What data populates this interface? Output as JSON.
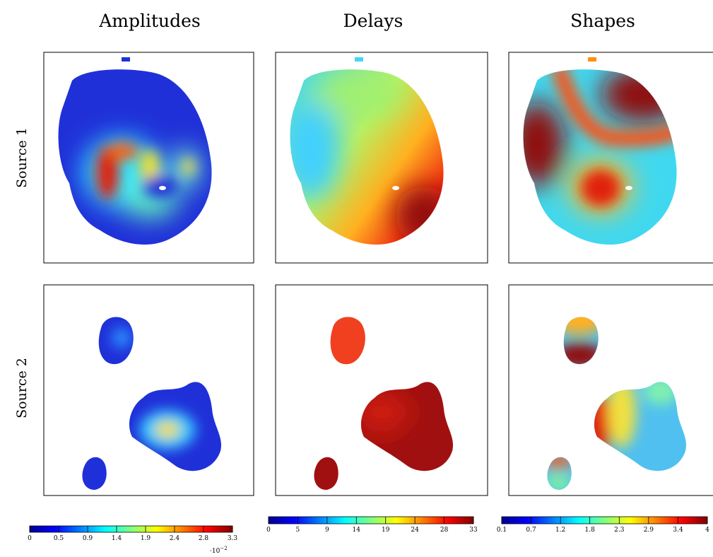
{
  "chart_data": {
    "type": "heatmap-grid",
    "colormap": "jet",
    "column_titles": [
      "Amplitudes",
      "Delays",
      "Shapes"
    ],
    "row_labels": [
      "Source 1",
      "Source 2"
    ],
    "colorbars": [
      {
        "lim": [
          0,
          3.3
        ],
        "exponent_base": "·10",
        "exponent_power": "−2",
        "ticks": [
          {
            "value": 0,
            "label": "0"
          },
          {
            "value": 0.4714,
            "label": "0.5"
          },
          {
            "value": 0.9429,
            "label": "0.9"
          },
          {
            "value": 1.4143,
            "label": "1.4"
          },
          {
            "value": 1.8857,
            "label": "1.9"
          },
          {
            "value": 2.3571,
            "label": "2.4"
          },
          {
            "value": 2.8286,
            "label": "2.8"
          },
          {
            "value": 3.3,
            "label": "3.3"
          }
        ]
      },
      {
        "lim": [
          0,
          33
        ],
        "ticks": [
          {
            "value": 0,
            "label": "0"
          },
          {
            "value": 4.714,
            "label": "5"
          },
          {
            "value": 9.429,
            "label": "9"
          },
          {
            "value": 14.143,
            "label": "14"
          },
          {
            "value": 18.857,
            "label": "19"
          },
          {
            "value": 23.571,
            "label": "24"
          },
          {
            "value": 28.286,
            "label": "28"
          },
          {
            "value": 33,
            "label": "33"
          }
        ]
      },
      {
        "lim": [
          0.1,
          4
        ],
        "ticks": [
          {
            "value": 0.1,
            "label": "0.1"
          },
          {
            "value": 0.657,
            "label": "0.7"
          },
          {
            "value": 1.214,
            "label": "1.2"
          },
          {
            "value": 1.771,
            "label": "1.8"
          },
          {
            "value": 2.329,
            "label": "2.3"
          },
          {
            "value": 2.886,
            "label": "2.9"
          },
          {
            "value": 3.443,
            "label": "3.4"
          },
          {
            "value": 4,
            "label": "4"
          }
        ]
      }
    ]
  }
}
